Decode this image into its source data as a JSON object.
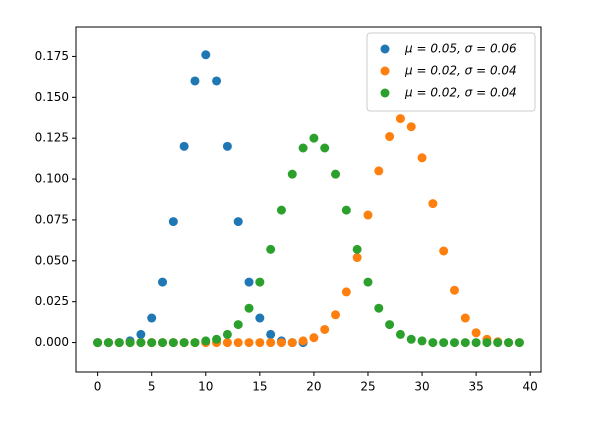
{
  "chart_data": {
    "type": "scatter",
    "xlim": [
      -2,
      41
    ],
    "ylim": [
      -0.018,
      0.193
    ],
    "xticks": [
      0,
      5,
      10,
      15,
      20,
      25,
      30,
      35,
      40
    ],
    "yticks": [
      {
        "value": 0,
        "label": "0.000"
      },
      {
        "value": 0.025,
        "label": "0.025"
      },
      {
        "value": 0.05,
        "label": "0.050"
      },
      {
        "value": 0.075,
        "label": "0.075"
      },
      {
        "value": 0.1,
        "label": "0.100"
      },
      {
        "value": 0.125,
        "label": "0.125"
      },
      {
        "value": 0.15,
        "label": "0.150"
      },
      {
        "value": 0.175,
        "label": "0.175"
      }
    ],
    "legend": "upper right",
    "series": [
      {
        "name": "μ = 0.05,  σ = 0.06",
        "color": "#1f77b4",
        "x": [
          0,
          1,
          2,
          3,
          4,
          5,
          6,
          7,
          8,
          9,
          10,
          11,
          12,
          13,
          14,
          15,
          16,
          17,
          18,
          19
        ],
        "values": [
          0,
          0,
          0,
          0.001,
          0.005,
          0.015,
          0.037,
          0.074,
          0.12,
          0.16,
          0.176,
          0.16,
          0.12,
          0.074,
          0.037,
          0.015,
          0.005,
          0.001,
          0,
          0
        ]
      },
      {
        "name": "μ = 0.02,  σ = 0.04",
        "color": "#ff7f0e",
        "x": [
          0,
          1,
          2,
          3,
          4,
          5,
          6,
          7,
          8,
          9,
          10,
          11,
          12,
          13,
          14,
          15,
          16,
          17,
          18,
          19,
          20,
          21,
          22,
          23,
          24,
          25,
          26,
          27,
          28,
          29,
          30,
          31,
          32,
          33,
          34,
          35,
          36,
          37,
          38,
          39
        ],
        "values": [
          0,
          0,
          0,
          0,
          0,
          0,
          0,
          0,
          0,
          0,
          0,
          0,
          0,
          0,
          0,
          0,
          0,
          0,
          0,
          0.001,
          0.003,
          0.008,
          0.017,
          0.031,
          0.052,
          0.078,
          0.105,
          0.126,
          0.137,
          0.132,
          0.113,
          0.085,
          0.056,
          0.032,
          0.015,
          0.006,
          0.002,
          0.0005,
          0,
          0
        ]
      },
      {
        "name": "μ = 0.02,  σ = 0.04",
        "color": "#2ca02c",
        "x": [
          0,
          1,
          2,
          3,
          4,
          5,
          6,
          7,
          8,
          9,
          10,
          11,
          12,
          13,
          14,
          15,
          16,
          17,
          18,
          19,
          20,
          21,
          22,
          23,
          24,
          25,
          26,
          27,
          28,
          29,
          30,
          31,
          32,
          33,
          34,
          35,
          36,
          37,
          38,
          39
        ],
        "values": [
          0,
          0,
          0,
          0,
          0,
          0,
          0,
          0,
          0,
          0,
          0.001,
          0.002,
          0.005,
          0.011,
          0.021,
          0.037,
          0.057,
          0.081,
          0.103,
          0.119,
          0.125,
          0.119,
          0.103,
          0.081,
          0.057,
          0.037,
          0.021,
          0.011,
          0.005,
          0.002,
          0.001,
          0,
          0,
          0,
          0,
          0,
          0,
          0,
          0,
          0
        ]
      }
    ]
  }
}
